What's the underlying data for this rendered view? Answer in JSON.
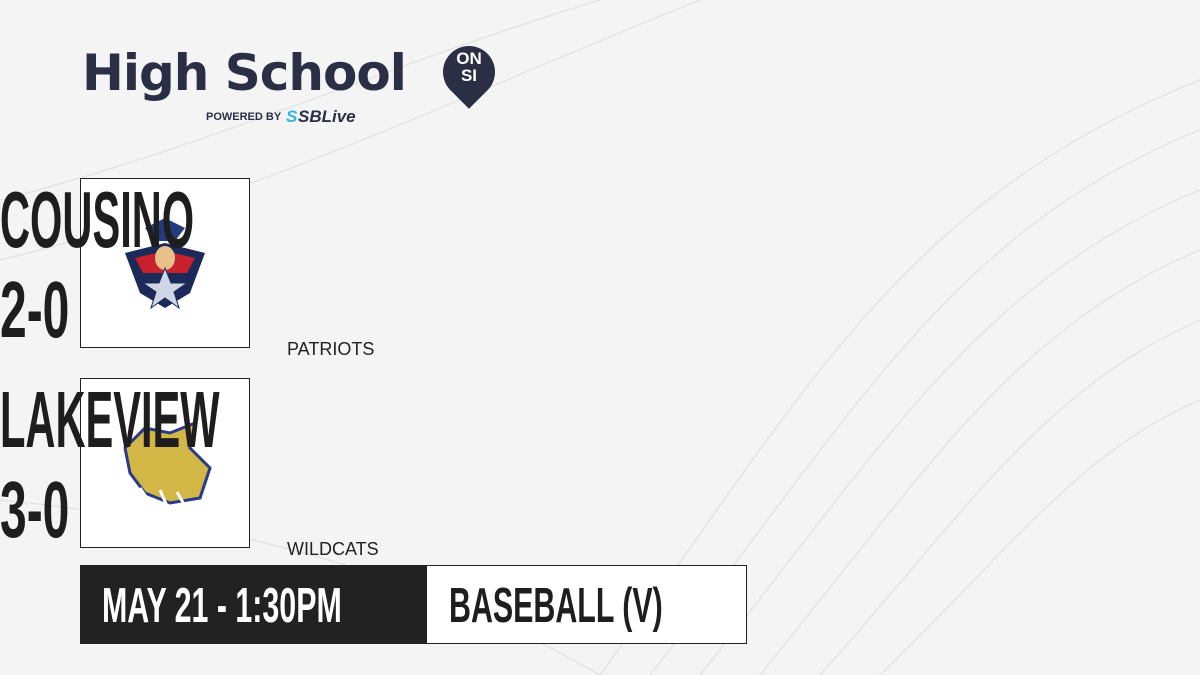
{
  "brand": {
    "title": "High School",
    "badge_top": "ON",
    "badge_bottom": "SI",
    "powered_by": "POWERED BY",
    "partner_prefix": "S",
    "partner": "SBLive"
  },
  "teams": [
    {
      "name": "COUSINO",
      "mascot": "PATRIOTS",
      "record": "2-0",
      "logo": "patriot-logo"
    },
    {
      "name": "LAKEVIEW",
      "mascot": "WILDCATS",
      "record": "3-0",
      "logo": "wildcat-logo"
    }
  ],
  "game": {
    "datetime": "MAY 21 - 1:30PM",
    "sport": "BASEBALL (V)"
  },
  "colors": {
    "brand_navy": "#2b2f45",
    "accent_blue": "#2fb4e9",
    "dark": "#222222"
  }
}
